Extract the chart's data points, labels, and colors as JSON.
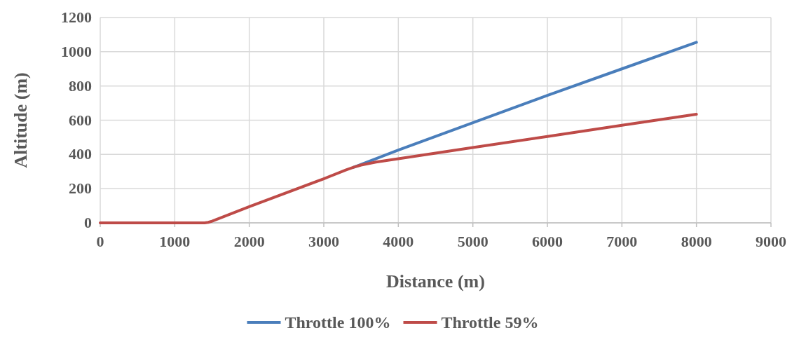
{
  "chart_data": {
    "type": "line",
    "xlabel": "Distance (m)",
    "ylabel": "Altitude (m)",
    "xlim": [
      0,
      9000
    ],
    "xticks": [
      0,
      1000,
      2000,
      3000,
      4000,
      5000,
      6000,
      7000,
      8000,
      9000
    ],
    "ylim": [
      0,
      1200
    ],
    "yticks": [
      0,
      200,
      400,
      600,
      800,
      1000,
      1200
    ],
    "grid": true,
    "legend": "bottom",
    "marker": "none",
    "line_style": "solid",
    "series": [
      {
        "name": "Throttle 100%",
        "color": "#4a7ebb",
        "x": [
          3400,
          4000,
          5000,
          6000,
          7000,
          8000
        ],
        "values": [
          325,
          425,
          585,
          745,
          900,
          1055
        ]
      },
      {
        "name": "Throttle 59%",
        "color": "#be4b48",
        "x": [
          0,
          1400,
          1450,
          1500,
          2000,
          3000,
          3300,
          3400,
          3500,
          3700,
          4000,
          5000,
          6000,
          7000,
          8000
        ],
        "values": [
          0,
          0,
          3,
          10,
          95,
          258,
          310,
          325,
          338,
          355,
          375,
          440,
          505,
          570,
          635
        ]
      }
    ]
  }
}
